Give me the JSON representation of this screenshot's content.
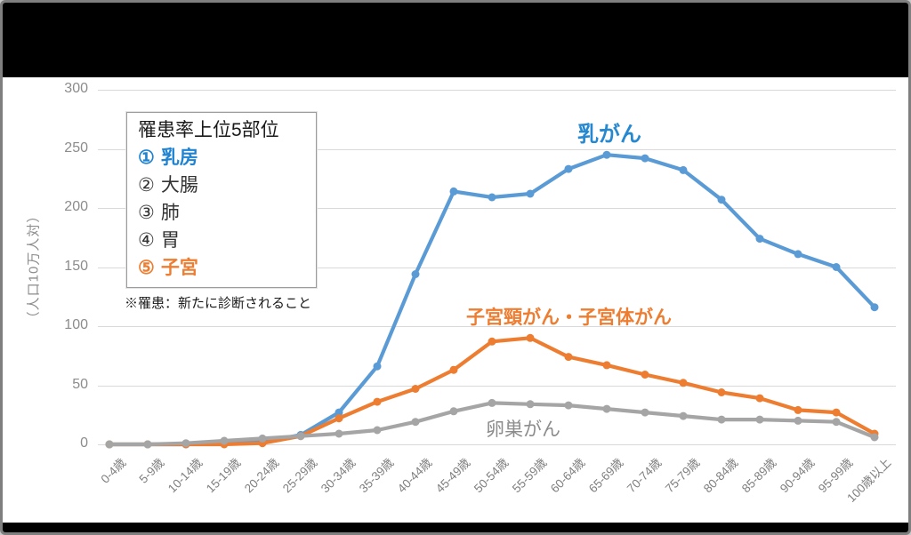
{
  "window": {
    "top_bar_label": "",
    "bottom_bar_label": ""
  },
  "legend_box": {
    "title": "罹患率上位5部位",
    "items": [
      {
        "number": "①",
        "label": "乳房",
        "color": "#1f83d1",
        "bold": true
      },
      {
        "number": "②",
        "label": "大腸",
        "color": "#333333",
        "bold": false
      },
      {
        "number": "③",
        "label": "肺",
        "color": "#333333",
        "bold": false
      },
      {
        "number": "④",
        "label": "胃",
        "color": "#333333",
        "bold": false
      },
      {
        "number": "⑤",
        "label": "子宮",
        "color": "#ed7d31",
        "bold": true
      }
    ]
  },
  "note": "※罹患：新たに診断されること",
  "chart_data": {
    "type": "line",
    "title": "",
    "xlabel": "",
    "ylabel": "（人口10万人対）",
    "ylim": [
      0,
      300
    ],
    "yticks": [
      0,
      50,
      100,
      150,
      200,
      250,
      300
    ],
    "grid": true,
    "legend_position": "inline-labels",
    "colors": {
      "grid": "#d9d9d9",
      "axis_text": "#808080",
      "background": "#ffffff"
    },
    "categories": [
      "0-4歳",
      "5-9歳",
      "10-14歳",
      "15-19歳",
      "20-24歳",
      "25-29歳",
      "30-34歳",
      "35-39歳",
      "40-44歳",
      "45-49歳",
      "50-54歳",
      "55-59歳",
      "60-64歳",
      "65-69歳",
      "70-74歳",
      "75-79歳",
      "80-84歳",
      "85-89歳",
      "90-94歳",
      "95-99歳",
      "100歳以上"
    ],
    "series": [
      {
        "name": "乳がん",
        "line_color": "#5b9bd5",
        "label_color": "#2588d0",
        "values": [
          0,
          0,
          0,
          1,
          2,
          8,
          27,
          66,
          144,
          214,
          209,
          212,
          233,
          245,
          242,
          232,
          207,
          174,
          161,
          150,
          116
        ]
      },
      {
        "name": "子宮頸がん・子宮体がん",
        "line_color": "#ed7d31",
        "label_color": "#ed7d31",
        "values": [
          0,
          0,
          0,
          0,
          1,
          7,
          22,
          36,
          47,
          63,
          87,
          90,
          74,
          67,
          59,
          52,
          44,
          39,
          29,
          27,
          9
        ]
      },
      {
        "name": "卵巣がん",
        "line_color": "#a5a5a5",
        "label_color": "#8c8c8c",
        "values": [
          0,
          0,
          1,
          3,
          5,
          7,
          9,
          12,
          19,
          28,
          35,
          34,
          33,
          30,
          27,
          24,
          21,
          21,
          20,
          19,
          6
        ]
      }
    ]
  }
}
